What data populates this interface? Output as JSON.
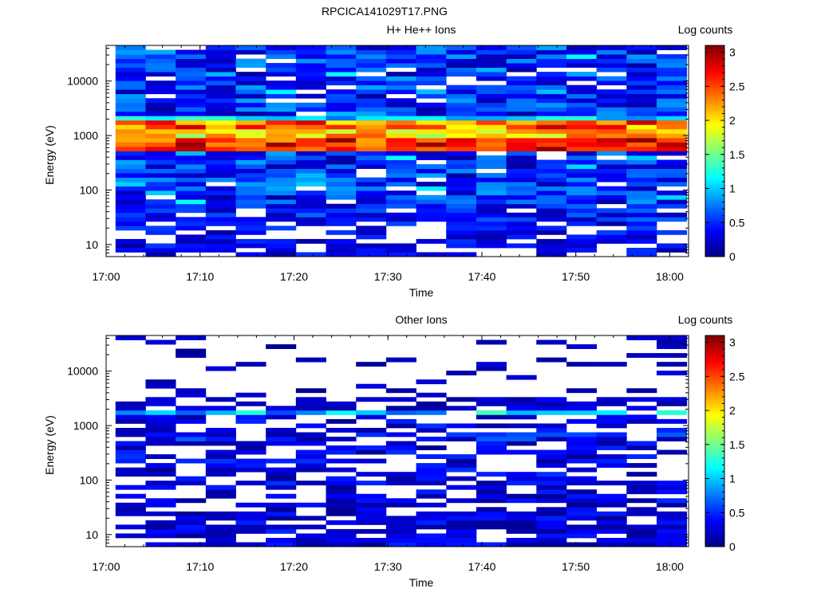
{
  "page_title": "RPCICA141029T17.PNG",
  "chart_data": [
    {
      "type": "heatmap",
      "title": "H+ He++ Ions",
      "xlabel": "Time",
      "ylabel": "Energy (eV)",
      "x_range": [
        "17:00",
        "18:02"
      ],
      "x_ticks": [
        "17:00",
        "17:10",
        "17:20",
        "17:30",
        "17:40",
        "17:50",
        "18:00"
      ],
      "y_scale": "log",
      "y_range": [
        6,
        45000
      ],
      "y_ticks": [
        10,
        100,
        1000,
        10000
      ],
      "y_tick_labels": [
        "10",
        "100",
        "1000",
        "10000"
      ],
      "colorbar": {
        "label": "Log counts",
        "range": [
          0,
          3.1
        ],
        "ticks": [
          0,
          0.5,
          1,
          1.5,
          2,
          2.5,
          3
        ],
        "tick_labels": [
          "0",
          "0.5",
          "1",
          "1.5",
          "2",
          "2.5",
          "3"
        ],
        "colormap": "jet"
      },
      "time_bins_start": "17:01",
      "time_bin_minutes": 3.2,
      "time_bin_count": 19,
      "energy_bin_count": 48,
      "description": "Persistent high counts (log ~2.5-3) near 600-900 eV and ~1500-1800 eV; scattered low counts (0.2-1) elsewhere; gaps at lowest energies."
    },
    {
      "type": "heatmap",
      "title": "Other Ions",
      "xlabel": "Time",
      "ylabel": "Energy (eV)",
      "x_range": [
        "17:00",
        "18:02"
      ],
      "x_ticks": [
        "17:00",
        "17:10",
        "17:20",
        "17:30",
        "17:40",
        "17:50",
        "18:00"
      ],
      "y_scale": "log",
      "y_range": [
        6,
        45000
      ],
      "y_ticks": [
        10,
        100,
        1000,
        10000
      ],
      "y_tick_labels": [
        "10",
        "100",
        "1000",
        "10000"
      ],
      "colorbar": {
        "label": "Log counts",
        "range": [
          0,
          3.1
        ],
        "ticks": [
          0,
          0.5,
          1,
          1.5,
          2,
          2.5,
          3
        ],
        "tick_labels": [
          "0",
          "0.5",
          "1",
          "1.5",
          "2",
          "2.5",
          "3"
        ],
        "colormap": "jet"
      },
      "time_bins_start": "17:01",
      "time_bin_minutes": 3.2,
      "time_bin_count": 19,
      "energy_bin_count": 48,
      "description": "Mostly sparse low counts (log ~0.1-0.5); bands at ~700-800 eV (log ~1.5-1.8) and ~1500-2000 eV (log ~1.0-1.4); many empty bins above 3000 eV."
    }
  ]
}
